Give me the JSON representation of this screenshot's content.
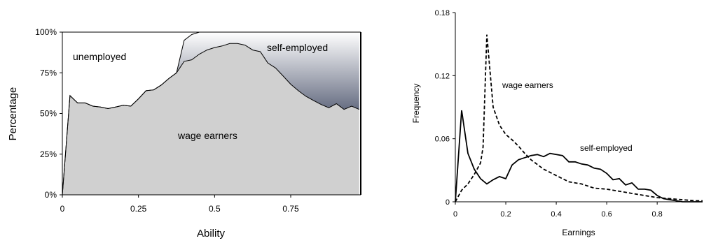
{
  "chart_data": [
    {
      "type": "area",
      "stacked": true,
      "xlabel": "Ability",
      "ylabel": "Percentage",
      "xlim": [
        0,
        0.98
      ],
      "ylim": [
        0,
        100
      ],
      "xticks": [
        {
          "v": 0,
          "label": "0"
        },
        {
          "v": 0.25,
          "label": "0.25"
        },
        {
          "v": 0.5,
          "label": "0.5"
        },
        {
          "v": 0.75,
          "label": "0.75"
        }
      ],
      "yticks": [
        {
          "v": 0,
          "label": "0%"
        },
        {
          "v": 25,
          "label": "25%"
        },
        {
          "v": 50,
          "label": "50%"
        },
        {
          "v": 75,
          "label": "75%"
        },
        {
          "v": 100,
          "label": "100%"
        }
      ],
      "grid": false,
      "x": [
        0,
        0.025,
        0.05,
        0.075,
        0.1,
        0.125,
        0.15,
        0.175,
        0.2,
        0.225,
        0.25,
        0.275,
        0.3,
        0.325,
        0.35,
        0.375,
        0.4,
        0.425,
        0.45,
        0.475,
        0.5,
        0.525,
        0.55,
        0.575,
        0.6,
        0.625,
        0.65,
        0.675,
        0.7,
        0.725,
        0.75,
        0.775,
        0.8,
        0.825,
        0.85,
        0.875,
        0.9,
        0.925,
        0.95,
        0.975
      ],
      "series": [
        {
          "name": "wage earners",
          "color": "#d0d0d0",
          "values": [
            0,
            61,
            56.5,
            56.5,
            54.5,
            54,
            53,
            54,
            55,
            54.5,
            59,
            64,
            64.5,
            67.5,
            71.5,
            75,
            82,
            83,
            86.5,
            89,
            90.5,
            91.5,
            93,
            93,
            92,
            89,
            88,
            81,
            78,
            73,
            68,
            64,
            60.5,
            58,
            55.5,
            53.5,
            56,
            52.5,
            54.5,
            52.5
          ]
        },
        {
          "name": "self-employed",
          "color": "#6b7186",
          "values": [
            0,
            0,
            0,
            0,
            0,
            0,
            0,
            0,
            0,
            0,
            0,
            0,
            0,
            0,
            0,
            0,
            13,
            15.5,
            13.5,
            11,
            9.5,
            8.5,
            7,
            7,
            8,
            11,
            12,
            19,
            22,
            27,
            32,
            36,
            39.5,
            42,
            44.5,
            46.5,
            44,
            47.5,
            45.5,
            47.5
          ]
        },
        {
          "name": "unemployed",
          "color": "#ffffff",
          "values": [
            100,
            39,
            43.5,
            43.5,
            45.5,
            46,
            47,
            46,
            45,
            45.5,
            41,
            36,
            35.5,
            32.5,
            28.5,
            25,
            5,
            1.5,
            0,
            0,
            0,
            0,
            0,
            0,
            0,
            0,
            0,
            0,
            0,
            0,
            0,
            0,
            0,
            0,
            0,
            0,
            0,
            0,
            0,
            0
          ]
        }
      ]
    },
    {
      "type": "line",
      "xlabel": "Earnings",
      "ylabel": "Frequency",
      "xlim": [
        0,
        0.98
      ],
      "ylim": [
        0,
        0.18
      ],
      "xticks": [
        {
          "v": 0,
          "label": "0"
        },
        {
          "v": 0.2,
          "label": "0.2"
        },
        {
          "v": 0.4,
          "label": "0.4"
        },
        {
          "v": 0.6,
          "label": "0.6"
        },
        {
          "v": 0.8,
          "label": "0.8"
        }
      ],
      "yticks": [
        {
          "v": 0,
          "label": "0"
        },
        {
          "v": 0.06,
          "label": "0.06"
        },
        {
          "v": 0.12,
          "label": "0.12"
        },
        {
          "v": 0.18,
          "label": "0.18"
        }
      ],
      "grid": false,
      "series": [
        {
          "name": "wage earners",
          "style": "dashed",
          "x": [
            0,
            0.025,
            0.05,
            0.075,
            0.1,
            0.11,
            0.125,
            0.15,
            0.175,
            0.2,
            0.225,
            0.25,
            0.275,
            0.3,
            0.35,
            0.4,
            0.45,
            0.5,
            0.55,
            0.6,
            0.65,
            0.7,
            0.75,
            0.8,
            0.85,
            0.9,
            0.95,
            0.98
          ],
          "y": [
            0,
            0.011,
            0.017,
            0.026,
            0.037,
            0.052,
            0.159,
            0.09,
            0.073,
            0.064,
            0.059,
            0.053,
            0.046,
            0.04,
            0.031,
            0.025,
            0.019,
            0.017,
            0.013,
            0.012,
            0.01,
            0.008,
            0.006,
            0.004,
            0.003,
            0.002,
            0.001,
            0.001
          ]
        },
        {
          "name": "self-employed",
          "style": "solid",
          "x": [
            0,
            0.025,
            0.05,
            0.075,
            0.1,
            0.125,
            0.15,
            0.175,
            0.2,
            0.225,
            0.25,
            0.275,
            0.3,
            0.325,
            0.35,
            0.375,
            0.4,
            0.425,
            0.45,
            0.475,
            0.5,
            0.525,
            0.55,
            0.575,
            0.6,
            0.625,
            0.65,
            0.675,
            0.7,
            0.725,
            0.75,
            0.775,
            0.8,
            0.825,
            0.85,
            0.875,
            0.9,
            0.95,
            0.98
          ],
          "y": [
            0,
            0.087,
            0.046,
            0.031,
            0.022,
            0.017,
            0.021,
            0.024,
            0.022,
            0.035,
            0.04,
            0.042,
            0.044,
            0.045,
            0.043,
            0.046,
            0.045,
            0.044,
            0.038,
            0.038,
            0.036,
            0.035,
            0.032,
            0.031,
            0.027,
            0.021,
            0.022,
            0.016,
            0.018,
            0.012,
            0.012,
            0.011,
            0.006,
            0.003,
            0.002,
            0.001,
            0,
            0,
            0
          ]
        }
      ]
    }
  ],
  "annotations": {
    "left": {
      "unemployed": "unemployed",
      "self_employed": "self-employed",
      "wage_earners": "wage earners"
    },
    "right": {
      "wage_earners": "wage earners",
      "self_employed": "self-employed"
    }
  }
}
